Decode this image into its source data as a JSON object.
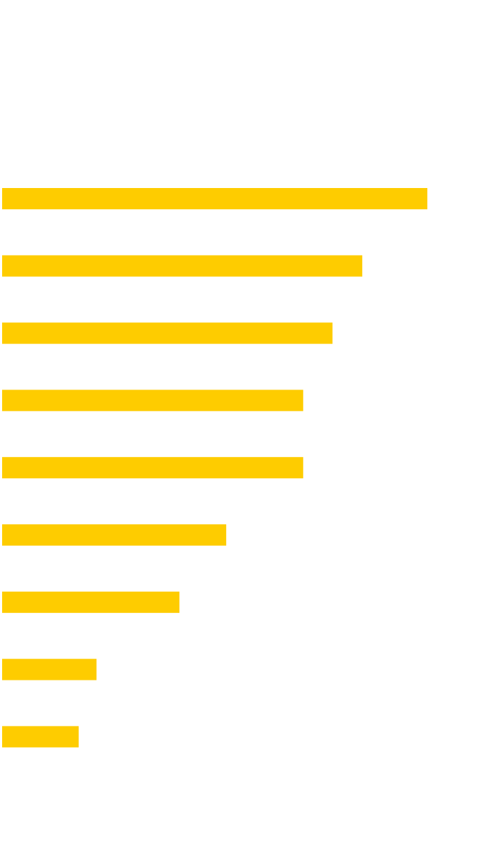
{
  "chart_data": {
    "type": "bar",
    "orientation": "horizontal",
    "categories": [
      null,
      null,
      null,
      null,
      null,
      null,
      null,
      null,
      null
    ],
    "values": [
      100,
      84.7,
      77.7,
      70.8,
      70.8,
      52.7,
      41.7,
      22.2,
      18
    ],
    "color": "#fecc00",
    "xlim": [
      0,
      100
    ]
  }
}
